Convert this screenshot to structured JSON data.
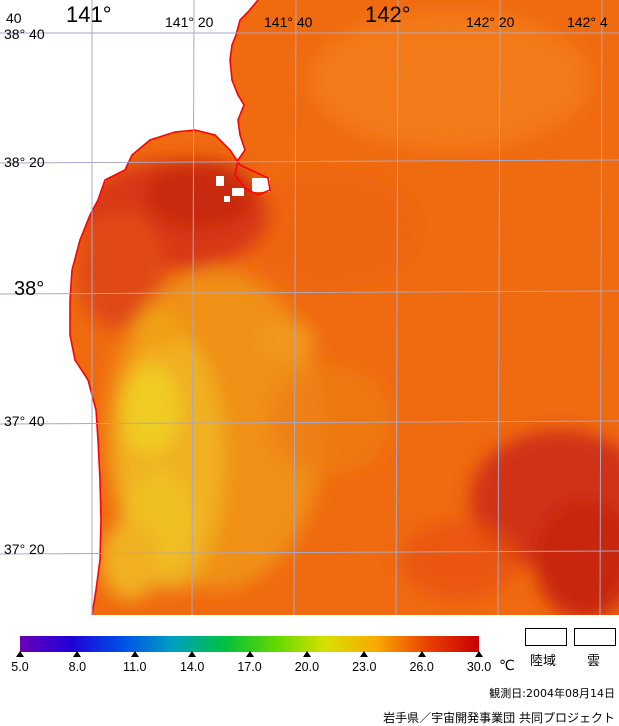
{
  "map": {
    "longitude_labels": [
      "141°",
      "141° 20",
      "141° 40",
      "142°",
      "142° 20",
      "142° 4"
    ],
    "latitude_labels": [
      "38° 40",
      "38° 20",
      "38°",
      "37° 40",
      "37° 20"
    ],
    "corner_fragment": "40"
  },
  "color_scale": {
    "unit": "℃",
    "ticks": [
      "5.0",
      "8.0",
      "11.0",
      "14.0",
      "17.0",
      "20.0",
      "23.0",
      "26.0",
      "30.0"
    ],
    "gradient": [
      "#6a00b8",
      "#2000d8",
      "#0050e8",
      "#00a0c0",
      "#00c040",
      "#60d800",
      "#d8e000",
      "#f8a800",
      "#e84000",
      "#c80000"
    ]
  },
  "legend": {
    "land_label": "陸域",
    "cloud_label": "雲"
  },
  "observation_date": "観測日:2004年08月14日",
  "credit": "岩手県／宇宙開発事業団 共同プロジェクト",
  "colors": {
    "sea_warm": "#f06a10",
    "sea_hot": "#d83010",
    "sea_cool": "#f0b020",
    "coast": "#ff0000",
    "grid": "#a8a8c8"
  }
}
